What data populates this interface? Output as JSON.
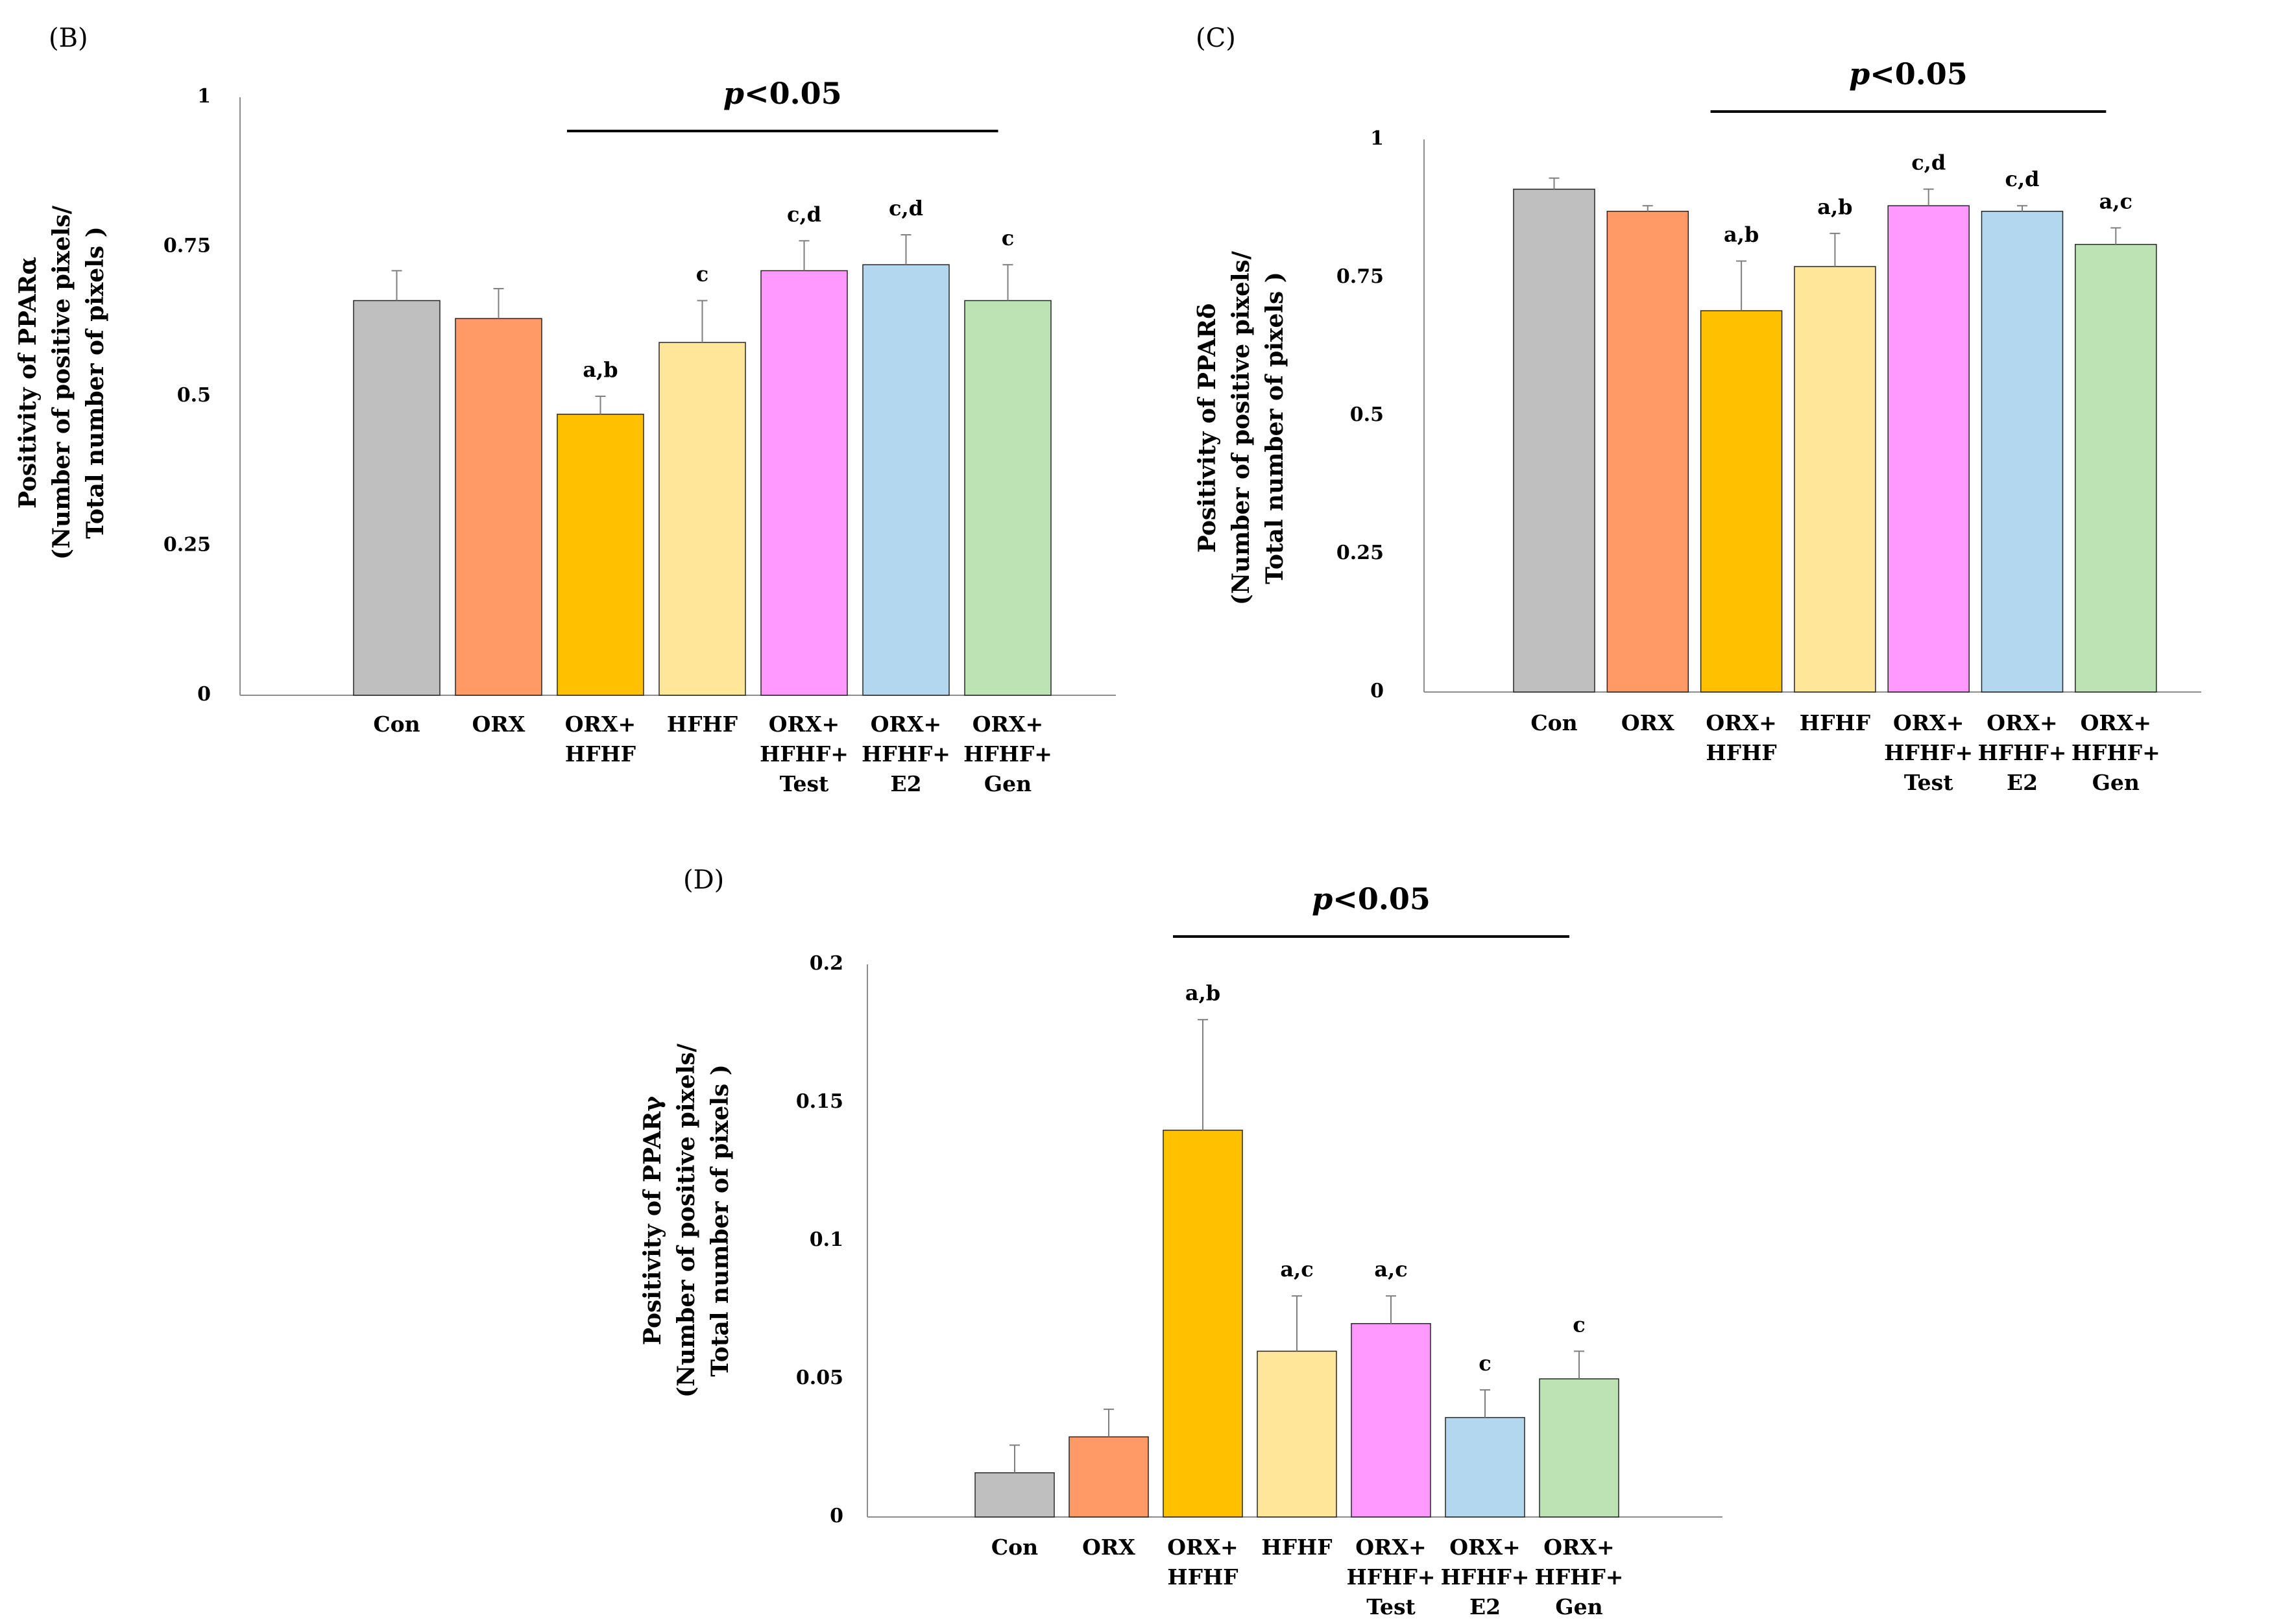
{
  "chart_data": [
    {
      "type": "bar",
      "panel_label": "(B)",
      "ylabel_lines": [
        "Positivity of PPARα",
        "(Number of positive pixels/",
        "Total number of pixels )"
      ],
      "ylim": [
        0,
        1
      ],
      "yticks": [
        "0",
        "0.25",
        "0.5",
        "0.75",
        "1"
      ],
      "categories": [
        [
          "Con"
        ],
        [
          "ORX"
        ],
        [
          "ORX+",
          "HFHF"
        ],
        [
          "HFHF"
        ],
        [
          "ORX+",
          "HFHF+",
          "Test"
        ],
        [
          "ORX+",
          "HFHF+",
          "E2"
        ],
        [
          "ORX+",
          "HFHF+",
          "Gen"
        ]
      ],
      "values": [
        0.66,
        0.63,
        0.47,
        0.59,
        0.71,
        0.72,
        0.66
      ],
      "errors": [
        0.05,
        0.05,
        0.03,
        0.07,
        0.05,
        0.05,
        0.06
      ],
      "annotations": [
        "",
        "",
        "a,b",
        "c",
        "c,d",
        "c,d",
        "c"
      ],
      "significance": {
        "prefix": "p",
        "suffix": "<0.05",
        "from_index": 2,
        "to_index": 6
      },
      "colors": [
        "#bfbfbf",
        "#ff9966",
        "#ffc000",
        "#ffe699",
        "#ff99ff",
        "#b4d7f0",
        "#bde3b4"
      ]
    },
    {
      "type": "bar",
      "panel_label": "(C)",
      "ylabel_lines": [
        "Positivity of PPARδ",
        "(Number of positive pixels/",
        "Total number of pixels )"
      ],
      "ylim": [
        0,
        1
      ],
      "yticks": [
        "0",
        "0.25",
        "0.5",
        "0.75",
        "1"
      ],
      "categories": [
        [
          "Con"
        ],
        [
          "ORX"
        ],
        [
          "ORX+",
          "HFHF"
        ],
        [
          "HFHF"
        ],
        [
          "ORX+",
          "HFHF+",
          "Test"
        ],
        [
          "ORX+",
          "HFHF+",
          "E2"
        ],
        [
          "ORX+",
          "HFHF+",
          "Gen"
        ]
      ],
      "values": [
        0.91,
        0.87,
        0.69,
        0.77,
        0.88,
        0.87,
        0.81
      ],
      "errors": [
        0.02,
        0.01,
        0.09,
        0.06,
        0.03,
        0.01,
        0.03
      ],
      "annotations": [
        "",
        "",
        "a,b",
        "a,b",
        "c,d",
        "c,d",
        "a,c"
      ],
      "significance": {
        "prefix": "p",
        "suffix": "<0.05",
        "from_index": 2,
        "to_index": 6
      },
      "colors": [
        "#bfbfbf",
        "#ff9966",
        "#ffc000",
        "#ffe699",
        "#ff99ff",
        "#b4d7f0",
        "#bde3b4"
      ]
    },
    {
      "type": "bar",
      "panel_label": "(D)",
      "ylabel_lines": [
        "Positivity of PPARγ",
        "(Number of positive pixels/",
        "Total number of pixels )"
      ],
      "ylim": [
        0,
        0.2
      ],
      "yticks": [
        "0",
        "0.05",
        "0.1",
        "0.15",
        "0.2"
      ],
      "categories": [
        [
          "Con"
        ],
        [
          "ORX"
        ],
        [
          "ORX+",
          "HFHF"
        ],
        [
          "HFHF"
        ],
        [
          "ORX+",
          "HFHF+",
          "Test"
        ],
        [
          "ORX+",
          "HFHF+",
          "E2"
        ],
        [
          "ORX+",
          "HFHF+",
          "Gen"
        ]
      ],
      "values": [
        0.016,
        0.029,
        0.14,
        0.06,
        0.07,
        0.036,
        0.05
      ],
      "errors": [
        0.01,
        0.01,
        0.04,
        0.02,
        0.01,
        0.01,
        0.01
      ],
      "annotations": [
        "",
        "",
        "a,b",
        "a,c",
        "a,c",
        "c",
        "c"
      ],
      "significance": {
        "prefix": "p",
        "suffix": "<0.05",
        "from_index": 2,
        "to_index": 6
      },
      "colors": [
        "#bfbfbf",
        "#ff9966",
        "#ffc000",
        "#ffe699",
        "#ff99ff",
        "#b4d7f0",
        "#bde3b4"
      ]
    }
  ]
}
